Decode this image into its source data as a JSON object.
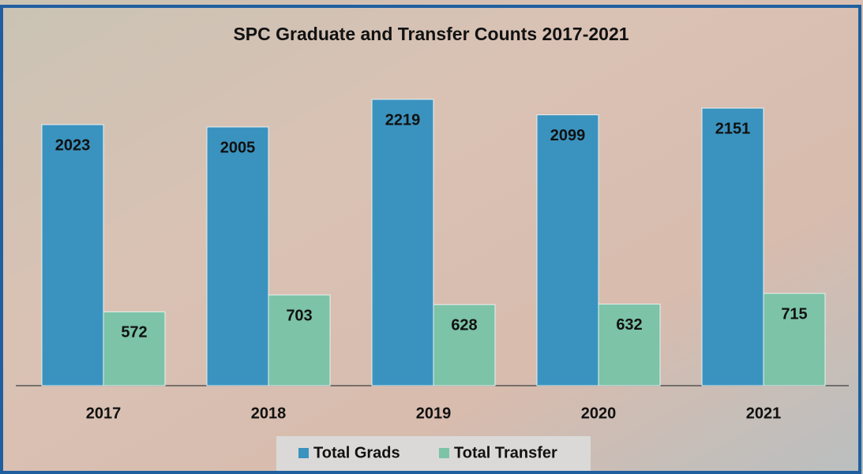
{
  "chart_data": {
    "type": "bar",
    "title": "SPC Graduate and Transfer Counts 2017-2021",
    "categories": [
      "2017",
      "2018",
      "2019",
      "2020",
      "2021"
    ],
    "series": [
      {
        "name": "Total Grads",
        "color": "#3a93bf",
        "values": [
          2023,
          2005,
          2219,
          2099,
          2151
        ]
      },
      {
        "name": "Total Transfer",
        "color": "#7cc3a8",
        "values": [
          572,
          703,
          628,
          632,
          715
        ]
      }
    ]
  }
}
